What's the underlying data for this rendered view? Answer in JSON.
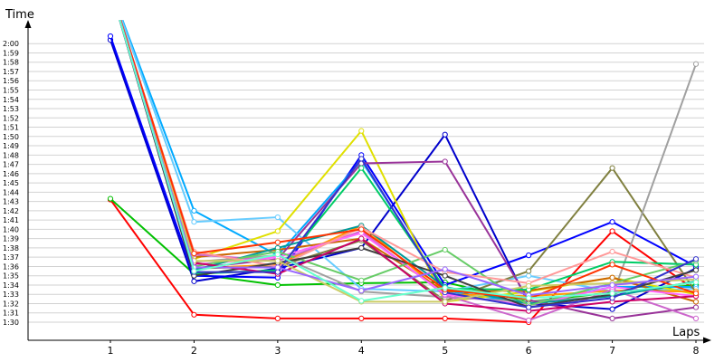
{
  "chart_data": {
    "type": "line",
    "xlabel": "Laps",
    "ylabel": "Time",
    "x": [
      1,
      2,
      3,
      4,
      5,
      6,
      7,
      8
    ],
    "x_tick_labels": [
      "1",
      "2",
      "3",
      "4",
      "5",
      "6",
      "7",
      "8"
    ],
    "y_unit": "seconds",
    "y_tick_values": [
      90,
      91,
      92,
      93,
      94,
      95,
      96,
      97,
      98,
      99,
      100,
      101,
      102,
      103,
      104,
      105,
      106,
      107,
      108,
      109,
      110,
      111,
      112,
      113,
      114,
      115,
      116,
      117,
      118,
      119,
      120
    ],
    "y_tick_labels": [
      "1:30",
      "1:31",
      "1:32",
      "1:33",
      "1:34",
      "1:35",
      "1:36",
      "1:37",
      "1:38",
      "1:39",
      "1:40",
      "1:41",
      "1:42",
      "1:43",
      "1:44",
      "1:45",
      "1:46",
      "1:47",
      "1:48",
      "1:49",
      "1:50",
      "1:51",
      "1:52",
      "1:53",
      "1:54",
      "1:55",
      "1:56",
      "1:57",
      "1:58",
      "1:59",
      "2:00"
    ],
    "ylim": [
      88.5,
      124
    ],
    "grid": "horizontal",
    "legend": "none",
    "series": [
      {
        "color": "#ff0000",
        "values": [
          103.2,
          90.8,
          90.4,
          90.4,
          90.4,
          90.0,
          99.8,
          93.4
        ]
      },
      {
        "color": "#00c000",
        "values": [
          103.3,
          95.2,
          94.0,
          94.2,
          94.3,
          92.2,
          93.2,
          94.0
        ]
      },
      {
        "color": "#0000cc",
        "values": [
          120.4,
          94.4,
          95.8,
          98.0,
          110.2,
          92.0,
          91.4,
          95.8
        ]
      },
      {
        "color": "#0000ff",
        "values": [
          120.8,
          95.0,
          94.8,
          108.0,
          94.0,
          97.2,
          100.8,
          96.0
        ]
      },
      {
        "color": "#00aaff",
        "values": [
          126,
          102.0,
          97.2,
          107.4,
          93.4,
          92.0,
          93.8,
          93.8
        ]
      },
      {
        "color": "#66ccff",
        "values": [
          126,
          100.8,
          101.3,
          93.6,
          93.3,
          95.0,
          93.3,
          93.6
        ]
      },
      {
        "color": "#e0e000",
        "values": [
          126,
          96.8,
          99.8,
          110.6,
          92.2,
          93.3,
          94.8,
          93.0
        ]
      },
      {
        "color": "#808040",
        "values": [
          126,
          95.8,
          96.0,
          98.8,
          92.3,
          95.5,
          106.6,
          93.2
        ]
      },
      {
        "color": "#a0a0a0",
        "values": [
          126,
          96.5,
          97.2,
          93.3,
          92.7,
          92.2,
          92.8,
          117.8
        ]
      },
      {
        "color": "#ff9900",
        "values": [
          126,
          95.8,
          96.2,
          100.4,
          93.0,
          92.8,
          93.4,
          93.3
        ]
      },
      {
        "color": "#cc6600",
        "values": [
          126,
          97.0,
          97.8,
          99.0,
          93.3,
          93.4,
          94.8,
          92.2
        ]
      },
      {
        "color": "#993399",
        "values": [
          126,
          95.8,
          96.8,
          107.1,
          107.3,
          92.4,
          90.4,
          91.6
        ]
      },
      {
        "color": "#cc66cc",
        "values": [
          126,
          97.3,
          96.6,
          99.8,
          92.9,
          90.2,
          93.5,
          90.4
        ]
      },
      {
        "color": "#ff66ff",
        "values": [
          126,
          96.2,
          97.0,
          99.6,
          93.0,
          91.8,
          93.8,
          92.8
        ]
      },
      {
        "color": "#00cc66",
        "values": [
          126,
          95.2,
          95.6,
          106.6,
          93.6,
          93.5,
          96.5,
          96.2
        ]
      },
      {
        "color": "#009999",
        "values": [
          126,
          95.6,
          98.0,
          100.4,
          93.8,
          92.0,
          92.8,
          94.4
        ]
      },
      {
        "color": "#66cc66",
        "values": [
          126,
          96.0,
          97.6,
          94.5,
          97.8,
          91.8,
          94.2,
          96.6
        ]
      },
      {
        "color": "#ff9999",
        "values": [
          126,
          97.6,
          96.0,
          100.2,
          95.4,
          94.2,
          97.6,
          94.8
        ]
      },
      {
        "color": "#404040",
        "values": [
          126,
          95.0,
          96.4,
          98.0,
          95.0,
          91.6,
          93.0,
          95.6
        ]
      },
      {
        "color": "#cc0066",
        "values": [
          126,
          96.4,
          95.2,
          99.0,
          92.0,
          91.2,
          92.2,
          92.8
        ]
      },
      {
        "color": "#3333cc",
        "values": [
          126,
          95.4,
          95.4,
          107.6,
          93.2,
          91.6,
          92.6,
          96.8
        ]
      },
      {
        "color": "#cccc66",
        "values": [
          126,
          96.6,
          96.6,
          92.2,
          92.2,
          93.9,
          94.2,
          94.6
        ]
      },
      {
        "color": "#ff3300",
        "values": [
          126,
          97.4,
          98.6,
          100.0,
          93.5,
          92.5,
          96.2,
          93.1
        ]
      },
      {
        "color": "#9966ff",
        "values": [
          126,
          95.9,
          95.9,
          93.4,
          95.7,
          92.9,
          94.0,
          94.9
        ]
      },
      {
        "color": "#66ffcc",
        "values": [
          126,
          95.5,
          97.3,
          92.3,
          93.7,
          92.6,
          93.1,
          94.3
        ]
      }
    ]
  }
}
